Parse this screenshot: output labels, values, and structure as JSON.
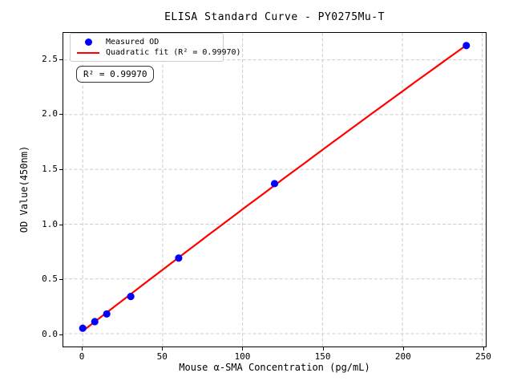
{
  "chart_data": {
    "type": "scatter",
    "title": "ELISA Standard Curve - PY0275Mu-T",
    "xlabel": "Mouse α-SMA Concentration (pg/mL)",
    "ylabel": "OD Value(450nm)",
    "x": [
      0,
      7.5,
      15,
      30,
      60,
      120,
      240
    ],
    "series": [
      {
        "name": "Measured OD",
        "type": "scatter",
        "color": "#0000ff",
        "values": [
          0.05,
          0.11,
          0.18,
          0.34,
          0.69,
          1.37,
          2.63
        ]
      },
      {
        "name": "Quadratic fit (R² = 0.99970)",
        "type": "line",
        "color": "#ff0000",
        "fit": "quadratic",
        "r_squared": "0.99970"
      }
    ],
    "annotation": "R² = 0.99970",
    "xticks": {
      "values": [
        0,
        50,
        100,
        150,
        200,
        250
      ],
      "labels": [
        "0",
        "50",
        "100",
        "150",
        "200",
        "250"
      ]
    },
    "yticks": {
      "values": [
        0.0,
        0.5,
        1.0,
        1.5,
        2.0,
        2.5
      ],
      "labels": [
        "0.0",
        "0.5",
        "1.0",
        "1.5",
        "2.0",
        "2.5"
      ]
    },
    "xlim": [
      -12,
      252
    ],
    "ylim": [
      -0.117,
      2.746
    ],
    "grid": {
      "style": "dashed",
      "color": "#cccccc"
    },
    "legend_position": "upper left",
    "spine_color": "#000000"
  }
}
